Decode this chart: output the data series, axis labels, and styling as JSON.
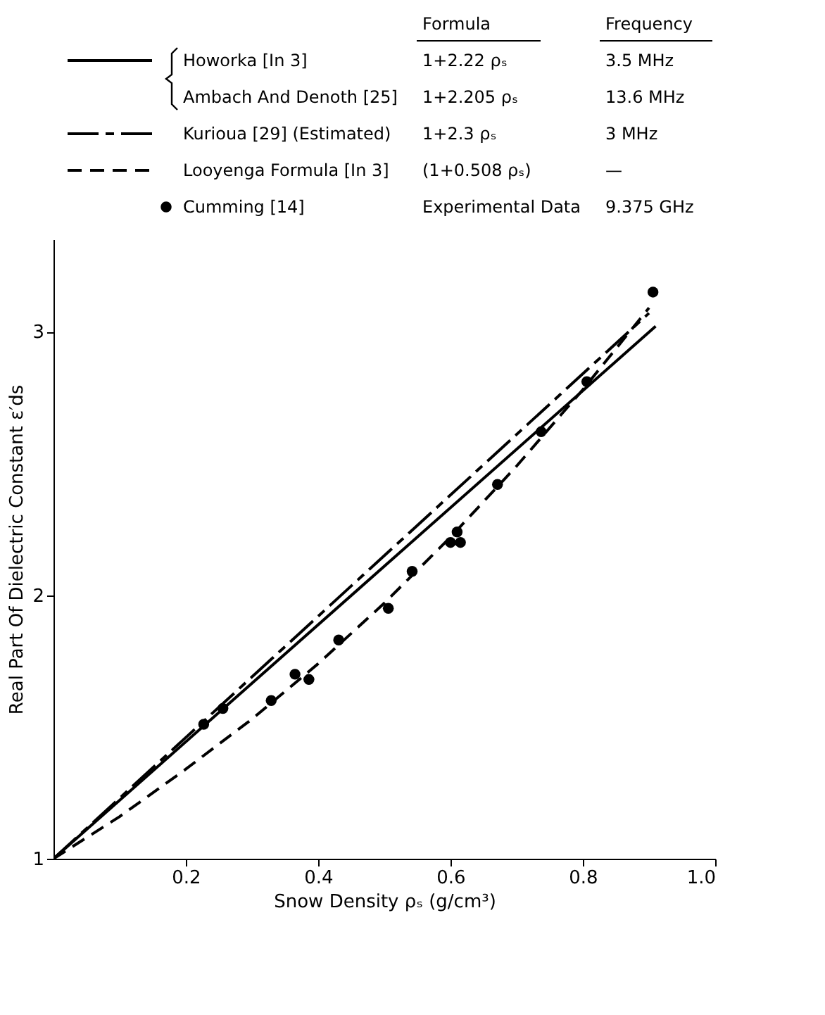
{
  "chart_data": {
    "type": "line",
    "xlabel": "Snow Density ρₛ (g/cm³)",
    "ylabel": "Real Part Of Dielectric Constant ε′ds",
    "xlim": [
      0,
      1
    ],
    "ylim": [
      1,
      3.35
    ],
    "xticks": [
      0.2,
      0.4,
      0.6,
      0.8,
      {
        "value": 1,
        "label": "1.0"
      }
    ],
    "yticks": [
      1,
      2,
      3
    ],
    "grid": false,
    "legend": "top",
    "series": [
      {
        "name": "Howorka [In 3]",
        "color": "#000000",
        "line_style": "solid",
        "x": [
          0,
          0.91
        ],
        "values": [
          1,
          3.02
        ]
      },
      {
        "name": "Kurioua [29] (Estimated)",
        "color": "#000000",
        "line_style": "dashdot",
        "x": [
          0,
          0.9
        ],
        "values": [
          1,
          3.07
        ]
      },
      {
        "name": "Looyenga Formula [In 3]",
        "color": "#000000",
        "line_style": "dashed",
        "x": [
          0,
          0.1,
          0.2,
          0.3,
          0.4,
          0.5,
          0.6,
          0.7,
          0.8,
          0.9
        ],
        "values": [
          1,
          1.16,
          1.34,
          1.53,
          1.74,
          1.97,
          2.22,
          2.49,
          2.78,
          3.09
        ]
      },
      {
        "name": "Cumming [14]",
        "type": "scatter",
        "color": "#000000",
        "marker": "circle",
        "x": [
          0.227,
          0.256,
          0.329,
          0.365,
          0.386,
          0.431,
          0.506,
          0.542,
          0.6,
          0.61,
          0.615,
          0.671,
          0.737,
          0.806,
          0.906
        ],
        "values": [
          1.51,
          1.57,
          1.6,
          1.7,
          1.68,
          1.83,
          1.95,
          2.09,
          2.2,
          2.24,
          2.2,
          2.42,
          2.62,
          2.81,
          3.15
        ]
      }
    ],
    "annotations": [
      "Ambach And Denoth [25]",
      "Formula",
      "Frequency",
      "1+2.22 ρₛ",
      "3.5 MHz",
      "1+2.205 ρₛ",
      "13.6 MHz",
      "1+2.3 ρₛ",
      "3 MHz",
      "(1+0.508 ρₛ)",
      "—",
      "Experimental Data",
      "9.375 GHz"
    ]
  }
}
